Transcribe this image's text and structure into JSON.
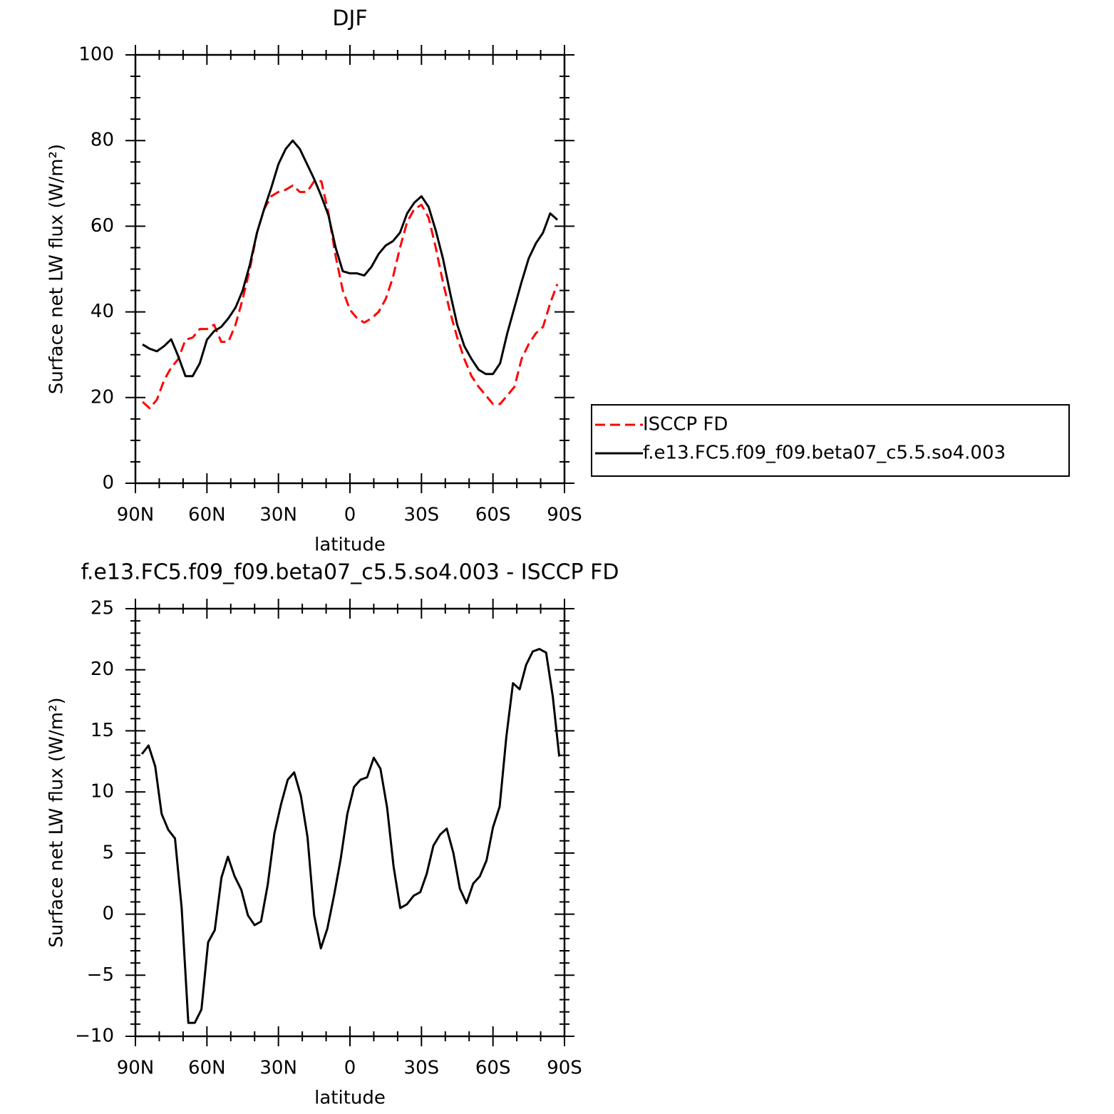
{
  "chart_data": [
    {
      "type": "line",
      "title": "DJF",
      "x_label": "latitude",
      "y_label": "Surface net LW flux (W/m²)",
      "xlim": [
        90,
        -90
      ],
      "xticks": [
        {
          "value": 90,
          "label": "90N"
        },
        {
          "value": 60,
          "label": "60N"
        },
        {
          "value": 30,
          "label": "30N"
        },
        0,
        {
          "value": -30,
          "label": "30S"
        },
        {
          "value": -60,
          "label": "60S"
        },
        {
          "value": -90,
          "label": "90S"
        }
      ],
      "ylim": [
        0,
        100
      ],
      "yticks": [
        0,
        20,
        40,
        60,
        80,
        100
      ],
      "legend": "right",
      "x": [
        87,
        84,
        81,
        78,
        75,
        72,
        69,
        66,
        63,
        60,
        57,
        54,
        51,
        48,
        45,
        42,
        39,
        36,
        33,
        30,
        27,
        24,
        21,
        18,
        15,
        12,
        9,
        6,
        3,
        0,
        -3,
        -6,
        -9,
        -12,
        -15,
        -18,
        -21,
        -24,
        -27,
        -30,
        -33,
        -36,
        -39,
        -42,
        -45,
        -48,
        -51,
        -54,
        -57,
        -60,
        -63,
        -66,
        -69,
        -72,
        -75,
        -78,
        -81,
        -84,
        -87
      ],
      "series": [
        {
          "name": "ISCCP FD",
          "color": "#ff0000",
          "dash": true,
          "values": [
            19,
            17.5,
            19.5,
            24,
            27,
            29,
            33.5,
            34,
            36,
            36,
            37,
            33,
            33,
            37,
            43,
            50,
            58.5,
            64,
            67,
            68,
            68.5,
            69.5,
            68,
            68,
            70.5,
            70.5,
            63,
            53,
            45,
            40.5,
            38.5,
            37.5,
            38.5,
            40,
            43,
            48,
            55,
            61,
            64,
            65,
            62,
            55,
            47,
            40,
            34,
            29,
            25,
            22.5,
            20.5,
            18.5,
            18.5,
            20.5,
            22.5,
            29,
            32.5,
            35,
            36.5,
            42,
            46.5
          ]
        },
        {
          "name": "f.e13.FC5.f09_f09.beta07_c5.5.so4.003",
          "color": "#000000",
          "dash": false,
          "values": [
            32.4,
            31.4,
            30.8,
            32,
            33.6,
            29.6,
            25,
            25,
            28,
            33.5,
            35.5,
            36.5,
            38.5,
            41,
            45,
            51,
            58.5,
            64,
            69,
            74.5,
            78,
            80,
            78,
            74.5,
            71,
            67,
            62.5,
            55,
            49.5,
            49,
            49,
            48.5,
            50.5,
            53.5,
            55.5,
            56.5,
            58.5,
            63,
            65.5,
            67,
            64.5,
            59,
            52.5,
            44.5,
            37,
            32,
            29,
            26.5,
            25.5,
            25.5,
            28,
            35,
            41,
            47,
            52.5,
            56,
            58.5,
            63,
            61.5
          ]
        }
      ]
    },
    {
      "type": "line",
      "title": "f.e13.FC5.f09_f09.beta07_c5.5.so4.003 - ISCCP FD",
      "x_label": "latitude",
      "y_label": "Surface net LW flux (W/m²)",
      "xlim": [
        90,
        -90
      ],
      "xticks": [
        {
          "value": 90,
          "label": "90N"
        },
        {
          "value": 60,
          "label": "60N"
        },
        {
          "value": 30,
          "label": "30N"
        },
        0,
        {
          "value": -30,
          "label": "30S"
        },
        {
          "value": -60,
          "label": "60S"
        },
        {
          "value": -90,
          "label": "90S"
        }
      ],
      "ylim": [
        -10,
        25
      ],
      "yticks": [
        {
          "value": -10,
          "label": "−10"
        },
        {
          "value": -5,
          "label": "−5"
        },
        0,
        5,
        10,
        15,
        20,
        25
      ],
      "x": [
        87.3,
        84.5,
        81.7,
        79.0,
        76.2,
        73.4,
        70.6,
        67.8,
        65.1,
        62.3,
        59.5,
        56.7,
        53.9,
        51.2,
        48.4,
        45.6,
        42.8,
        40.0,
        37.3,
        34.5,
        31.7,
        28.9,
        26.1,
        23.4,
        20.6,
        17.8,
        15.0,
        12.2,
        9.5,
        6.7,
        3.9,
        1.1,
        -1.7,
        -4.4,
        -7.2,
        -10.0,
        -12.8,
        -15.6,
        -18.3,
        -21.1,
        -23.9,
        -26.7,
        -29.5,
        -32.2,
        -35.0,
        -37.8,
        -40.6,
        -43.4,
        -46.1,
        -48.9,
        -51.7,
        -54.5,
        -57.3,
        -60.0,
        -62.8,
        -65.6,
        -68.4,
        -71.2,
        -73.9,
        -76.7,
        -79.5,
        -82.3,
        -85.1,
        -87.8
      ],
      "series": [
        {
          "color": "#000000",
          "dash": false,
          "values": [
            13.1,
            13.8,
            12.1,
            8.2,
            6.9,
            6.2,
            0.5,
            -8.9,
            -8.9,
            -7.8,
            -2.3,
            -1.3,
            3.0,
            4.7,
            3.1,
            2.0,
            -0.1,
            -0.9,
            -0.6,
            2.4,
            6.6,
            9.0,
            11.0,
            11.6,
            9.7,
            6.3,
            -0.1,
            -2.8,
            -1.2,
            1.5,
            4.5,
            8.2,
            10.4,
            11.0,
            11.2,
            12.8,
            11.9,
            8.7,
            3.9,
            0.5,
            0.8,
            1.5,
            1.8,
            3.3,
            5.6,
            6.5,
            7.0,
            5.0,
            2.1,
            0.9,
            2.5,
            3.1,
            4.4,
            7.1,
            8.8,
            14.5,
            18.9,
            18.4,
            20.4,
            21.5,
            21.7,
            21.4,
            17.8,
            12.9
          ]
        }
      ]
    }
  ]
}
